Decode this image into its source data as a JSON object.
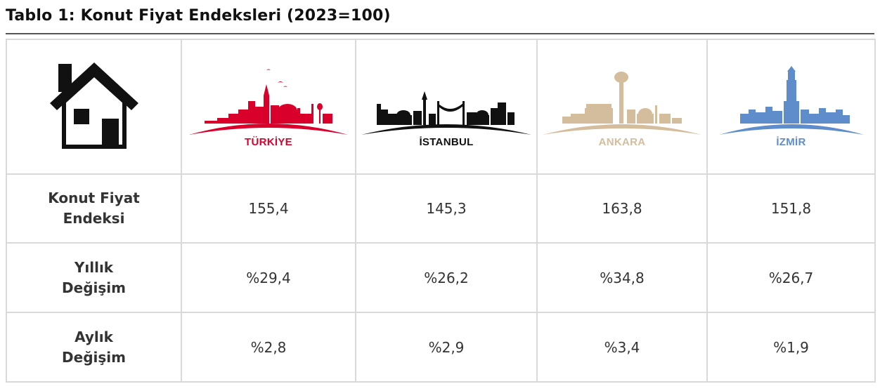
{
  "title": "Tablo 1: Konut Fiyat Endeksleri (2023=100)",
  "icons": {
    "header": "house-icon"
  },
  "cities": [
    {
      "name": "TÜRKİYE",
      "color": "#d9002b",
      "icon": "turkiye-skyline-icon"
    },
    {
      "name": "İSTANBUL",
      "color": "#111111",
      "icon": "istanbul-skyline-icon"
    },
    {
      "name": "ANKARA",
      "color": "#d4bd9c",
      "icon": "ankara-skyline-icon"
    },
    {
      "name": "İZMİR",
      "color": "#5f8dcc",
      "icon": "izmir-skyline-icon"
    }
  ],
  "rows": [
    {
      "label_lines": [
        "Konut Fiyat",
        "Endeksi"
      ],
      "values": [
        "155,4",
        "145,3",
        "163,8",
        "151,8"
      ]
    },
    {
      "label_lines": [
        "Yıllık",
        "Değişim"
      ],
      "values": [
        "%29,4",
        "%26,2",
        "%34,8",
        "%26,7"
      ]
    },
    {
      "label_lines": [
        "Aylık",
        "Değişim"
      ],
      "values": [
        "%2,8",
        "%2,9",
        "%3,4",
        "%1,9"
      ]
    }
  ]
}
